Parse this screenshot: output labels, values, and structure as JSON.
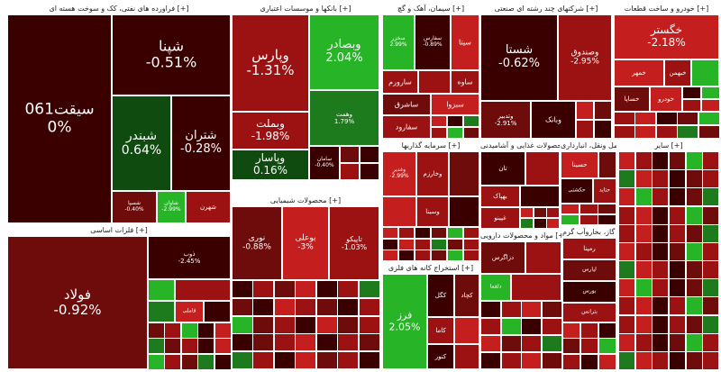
{
  "palette": {
    "dk": "#3a0000",
    "dr": "#6e0b0b",
    "rd": "#9c1212",
    "lr": "#c41e1e",
    "dg": "#0f4a0f",
    "gr": "#1d7a1d",
    "lg": "#27b427"
  },
  "sections": {
    "oil": "فراورده های نفتی، کک و سوخت هسته ای [+]",
    "banks": "بانکها و موسسات اعتباری [+]",
    "cement": "سیمان، آهک و گچ [+]",
    "holding": "شرکتهای چند رشته ای صنعتی [+]",
    "auto": "خودرو و ساخت قطعات [+]",
    "metals": "فلزات اساسی [+]",
    "chemical": "محصولات شیمیایی [+]",
    "invest": "سرمایه گذاریها [+]",
    "food": "محصولات غذایی و آشامیدنی [+]",
    "transport": "حمل ونقل، انبارداری [+]",
    "other_small": "سایر [+]",
    "pharma": "مواد و محصولات دارویی [+]",
    "mining": "استخراج کانه های فلزی [+]",
    "utilities": "عرضه برق، گاز، بخاروآب گرم [+]"
  },
  "tiles": {
    "seghat": {
      "name": "سیقت061",
      "chg": "0%"
    },
    "shepna": {
      "name": "شپنا",
      "chg": "-0.51%"
    },
    "shebandar": {
      "name": "شبندر",
      "chg": "0.64%"
    },
    "shetran": {
      "name": "شتران",
      "chg": "-0.28%"
    },
    "shavar": {
      "name": "شاوان",
      "chg": "-2.99%"
    },
    "shesp": {
      "name": "شسپا",
      "chg": "-0.40%"
    },
    "shahran": {
      "name": "شهرن",
      "chg": ""
    },
    "vapars": {
      "name": "وپارس",
      "chg": "-1.31%"
    },
    "vebsader": {
      "name": "وبصادر",
      "chg": "2.04%"
    },
    "vebmellat": {
      "name": "وبملت",
      "chg": "-1.98%"
    },
    "vesasar": {
      "name": "وپاسار",
      "chg": "0.16%"
    },
    "vehemat": {
      "name": "وهمت",
      "chg": "1.79%"
    },
    "vesamn": {
      "name": "سامان",
      "chg": "-0.40%"
    },
    "sekhazar": {
      "name": "سخزر",
      "chg": "2.99%"
    },
    "sefars": {
      "name": "سفارس",
      "chg": "-0.89%"
    },
    "sita": {
      "name": "سیتا",
      "chg": ""
    },
    "saveh": {
      "name": "ساوه",
      "chg": ""
    },
    "saroom": {
      "name": "سارورم",
      "chg": ""
    },
    "sashrak": {
      "name": "ساشرق",
      "chg": ""
    },
    "sefaroud": {
      "name": "سفارود",
      "chg": ""
    },
    "sabzeh": {
      "name": "سبزوا",
      "chg": ""
    },
    "shasta": {
      "name": "شستا",
      "chg": "-0.62%"
    },
    "vesandoq": {
      "name": "وصندوق",
      "chg": "-2.95%"
    },
    "vebank": {
      "name": "وبانک",
      "chg": ""
    },
    "vetadbir": {
      "name": "وتدبیر",
      "chg": "-2.91%"
    },
    "khegostar": {
      "name": "خگستر",
      "chg": "-2.18%"
    },
    "khomehvar": {
      "name": "خمهر",
      "chg": ""
    },
    "khebahman": {
      "name": "خبهمن",
      "chg": ""
    },
    "khesapa": {
      "name": "خساپا",
      "chg": ""
    },
    "khodro": {
      "name": "خودرو",
      "chg": ""
    },
    "foolad": {
      "name": "فولاد",
      "chg": "-0.92%"
    },
    "zob": {
      "name": "ذوب",
      "chg": "-2.45%"
    },
    "fameli": {
      "name": "فاملی",
      "chg": ""
    },
    "noori": {
      "name": "نوری",
      "chg": "-0.88%"
    },
    "bouali": {
      "name": "بوعلی",
      "chg": "-3%"
    },
    "talico": {
      "name": "تاپیکو",
      "chg": "-1.03%"
    },
    "vegadir": {
      "name": "وغدیر",
      "chg": "-2.99%"
    },
    "vesakht": {
      "name": "وخارزم",
      "chg": ""
    },
    "vesina": {
      "name": "وسینا",
      "chg": ""
    },
    "tan": {
      "name": "تان",
      "chg": ""
    },
    "gebahar": {
      "name": "بهپاک",
      "chg": ""
    },
    "gebeshahr": {
      "name": "غپینو",
      "chg": ""
    },
    "hesina": {
      "name": "حسینا",
      "chg": ""
    },
    "hekeshti": {
      "name": "حکشتی",
      "chg": ""
    },
    "hetaid": {
      "name": "حتاید",
      "chg": ""
    },
    "lesanat": {
      "name": "لپارس",
      "chg": ""
    },
    "dezagros": {
      "name": "دزاگرس",
      "chg": ""
    },
    "dealmaa": {
      "name": "دلقما",
      "chg": ""
    },
    "fereyz": {
      "name": "فرز",
      "chg": "2.05%"
    },
    "kegelgohar": {
      "name": "کگل",
      "chg": ""
    },
    "kechad": {
      "name": "کچاد",
      "chg": ""
    },
    "kama": {
      "name": "کاما",
      "chg": ""
    },
    "kenor": {
      "name": "کنور",
      "chg": ""
    },
    "remapna": {
      "name": "رمپنا",
      "chg": ""
    },
    "bapasa": {
      "name": "بپاس",
      "chg": ""
    },
    "bourse": {
      "name": "بورس",
      "chg": ""
    },
    "basaher": {
      "name": "بترانس",
      "chg": ""
    }
  }
}
